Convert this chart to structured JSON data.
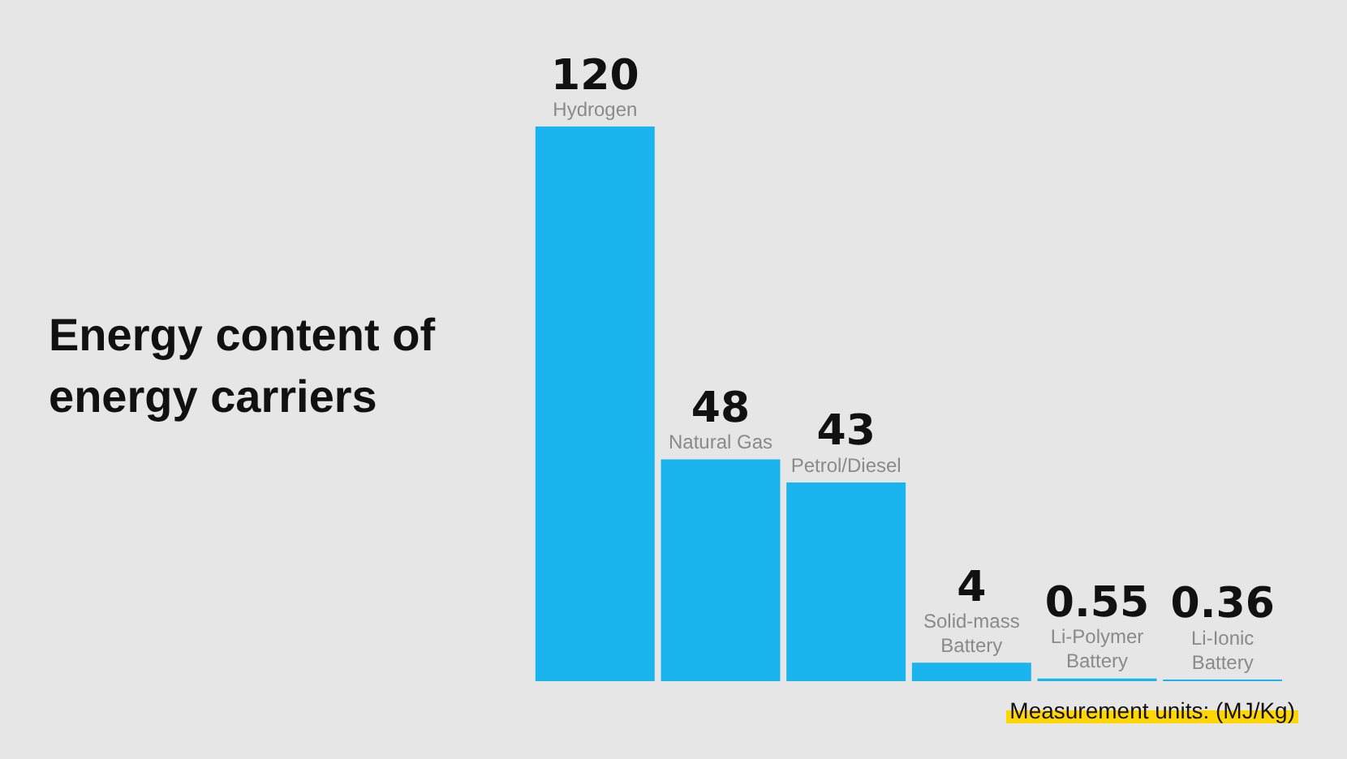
{
  "chart_data": {
    "type": "bar",
    "title": "Energy content of energy carriers",
    "categories": [
      "Hydrogen",
      "Natural Gas",
      "Petrol/Diesel",
      "Solid-mass Battery",
      "Li-Polymer Battery",
      "Li-Ionic Battery"
    ],
    "values": [
      120,
      48,
      43,
      4,
      0.55,
      0.36
    ],
    "color": "#1ab4ef",
    "data_labels": true,
    "legend": false,
    "annotations": [
      "Measurement units: (MJ/Kg)"
    ]
  }
}
